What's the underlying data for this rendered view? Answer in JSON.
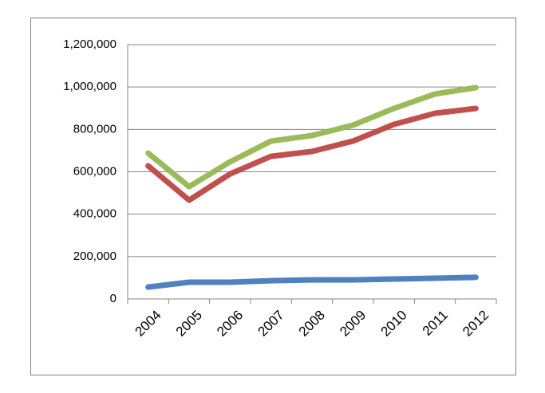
{
  "chart_data": {
    "type": "line",
    "categories": [
      "2004",
      "2005",
      "2006",
      "2007",
      "2008",
      "2009",
      "2010",
      "2011",
      "2012"
    ],
    "series": [
      {
        "color": "#4f81bd",
        "values": [
          56000,
          79000,
          79000,
          86000,
          90000,
          90000,
          94000,
          98000,
          102000
        ]
      },
      {
        "color": "#c0504d",
        "values": [
          628000,
          466000,
          590000,
          673000,
          696000,
          745000,
          824000,
          876000,
          899000
        ]
      },
      {
        "color": "#9bbb59",
        "values": [
          688000,
          530000,
          647000,
          745000,
          771000,
          820000,
          899000,
          967000,
          997000
        ]
      }
    ],
    "ylim": [
      0,
      1200000
    ],
    "yticks": [
      0,
      {
        "value": 200000,
        "label": "200,000"
      },
      {
        "value": 400000,
        "label": "400,000"
      },
      {
        "value": 600000,
        "label": "600,000"
      },
      {
        "value": 800000,
        "label": "800,000"
      },
      {
        "value": 1000000,
        "label": "1,000,000"
      },
      {
        "value": 1200000,
        "label": "1,200,000"
      }
    ],
    "grid": true
  }
}
